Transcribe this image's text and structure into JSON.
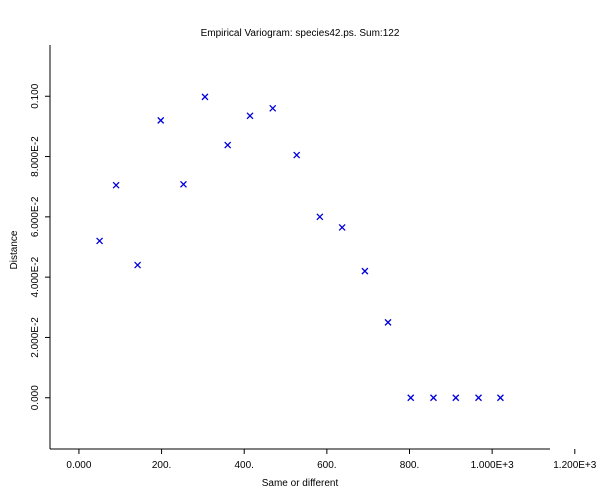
{
  "chart_data": {
    "type": "scatter",
    "title": "Empirical Variogram: species42.ps. Sum:122",
    "xlabel": "Same or different",
    "ylabel": "Distance",
    "xlim": [
      -70,
      1140
    ],
    "ylim": [
      -0.017,
      0.117
    ],
    "x_ticks": [
      {
        "value": 0,
        "label": "0.000"
      },
      {
        "value": 200,
        "label": "200."
      },
      {
        "value": 400,
        "label": "400."
      },
      {
        "value": 600,
        "label": "600."
      },
      {
        "value": 800,
        "label": "800."
      },
      {
        "value": 1000,
        "label": "1.000E+3"
      },
      {
        "value": 1200,
        "label": "1.200E+3"
      }
    ],
    "y_ticks": [
      {
        "value": 0,
        "label": "0.000"
      },
      {
        "value": 0.02,
        "label": "2.000E-2"
      },
      {
        "value": 0.04,
        "label": "4.000E-2"
      },
      {
        "value": 0.06,
        "label": "6.000E-2"
      },
      {
        "value": 0.08,
        "label": "8.000E-2"
      },
      {
        "value": 0.1,
        "label": "0.100"
      }
    ],
    "grid": false,
    "marker": "x",
    "color": "#0000dd",
    "points": [
      {
        "x": 50,
        "y": 0.052
      },
      {
        "x": 90,
        "y": 0.0705
      },
      {
        "x": 142,
        "y": 0.044
      },
      {
        "x": 198,
        "y": 0.092
      },
      {
        "x": 253,
        "y": 0.0708
      },
      {
        "x": 305,
        "y": 0.0998
      },
      {
        "x": 360,
        "y": 0.0838
      },
      {
        "x": 414,
        "y": 0.0935
      },
      {
        "x": 469,
        "y": 0.096
      },
      {
        "x": 527,
        "y": 0.0805
      },
      {
        "x": 583,
        "y": 0.06
      },
      {
        "x": 637,
        "y": 0.0565
      },
      {
        "x": 692,
        "y": 0.042
      },
      {
        "x": 748,
        "y": 0.025
      },
      {
        "x": 803,
        "y": 0
      },
      {
        "x": 858,
        "y": 0
      },
      {
        "x": 912,
        "y": 0
      },
      {
        "x": 967,
        "y": 0
      },
      {
        "x": 1020,
        "y": 0
      }
    ]
  }
}
